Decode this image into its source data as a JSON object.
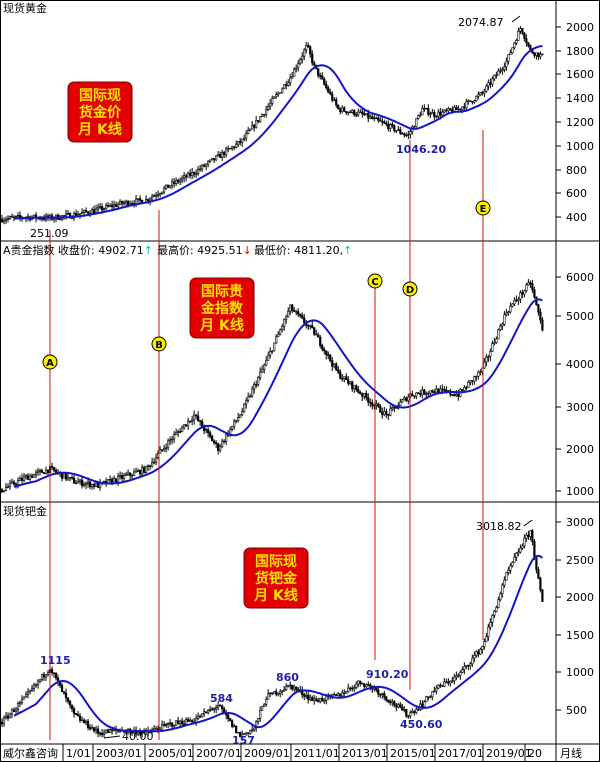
{
  "colors": {
    "bg": "#ffffff",
    "candle": "#000000",
    "ma": "#1414c8",
    "vline": "#c81414",
    "axis": "#000000",
    "badge": "#e30000",
    "badge_text": "#ffe000",
    "marker": "#fff200",
    "annotation": "#1f1fa8",
    "arrow_up": "#00c0c0",
    "arrow_down": "#ff0000"
  },
  "panels": [
    {
      "id": "gold",
      "header": "现货黄金",
      "badge": [
        "国际现",
        "货金价",
        "月 K线"
      ],
      "axis_ticks": [
        "2000",
        "1800",
        "1600",
        "1400",
        "1200",
        "1000",
        "800",
        "600",
        "400"
      ]
    },
    {
      "id": "index",
      "header_parts": [
        "A贵金指数 ",
        "收盘价: ",
        "4902.71",
        "",
        "最高价: ",
        "4925.51",
        "",
        "最低价: ",
        "4811.20",
        ","
      ],
      "badge": [
        "国际贵",
        "金指数",
        "月 K线"
      ],
      "axis_ticks": [
        "6000",
        "5000",
        "4000",
        "3000",
        "2000",
        "1000"
      ]
    },
    {
      "id": "palladium",
      "header": "现货钯金",
      "badge": [
        "国际现",
        "货钯金",
        "月 K线"
      ],
      "axis_ticks": [
        "3000",
        "2500",
        "2000",
        "1500",
        "1000",
        "500"
      ]
    }
  ],
  "markers": [
    "A",
    "B",
    "C",
    "D",
    "E"
  ],
  "annotations": {
    "gold": [
      "251.09",
      "2074.87",
      "1046.20"
    ],
    "palladium": [
      "1115",
      "40.00",
      "584",
      "157",
      "860",
      "910.20",
      "450.60",
      "3018.82"
    ]
  },
  "footer": {
    "left": "威尔鑫咨询",
    "dates": [
      "1/01",
      "2003/01",
      "2005/01",
      "2007/01",
      "2009/01",
      "2011/01",
      "2013/01",
      "2015/01",
      "2017/01",
      "2019/01",
      "20"
    ],
    "right": "月线"
  },
  "chart_data": [
    {
      "type": "line",
      "title": "现货黄金",
      "ylim": [
        100,
        2200
      ],
      "ma_color": "#1414c8",
      "x": [
        1999,
        2000,
        2001,
        2002,
        2003,
        2004,
        2005,
        2006,
        2007,
        2008,
        2009,
        2010,
        2011,
        2011.7,
        2012,
        2013,
        2014,
        2015,
        2015.9,
        2016.5,
        2017,
        2018,
        2019,
        2020,
        2020.6,
        2021,
        2021.5
      ],
      "values": [
        260,
        280,
        270,
        300,
        350,
        410,
        440,
        580,
        700,
        850,
        1000,
        1300,
        1600,
        1900,
        1700,
        1300,
        1250,
        1150,
        1046,
        1300,
        1250,
        1300,
        1450,
        1750,
        2075,
        1850,
        1800
      ]
    },
    {
      "type": "line",
      "title": "A贵金指数",
      "ylim": [
        800,
        6600
      ],
      "ma_color": "#1414c8",
      "x": [
        1999,
        2000,
        2001,
        2002,
        2003,
        2004,
        2005,
        2006,
        2007,
        2008,
        2009,
        2010,
        2011,
        2012,
        2013,
        2014,
        2015,
        2016,
        2017,
        2018,
        2019,
        2020,
        2021,
        2021.5
      ],
      "values": [
        1000,
        1300,
        1500,
        1200,
        1100,
        1300,
        1500,
        2200,
        2800,
        2000,
        2900,
        4100,
        5400,
        4800,
        3800,
        3300,
        2800,
        3300,
        3400,
        3300,
        3900,
        5300,
        6000,
        4900
      ]
    },
    {
      "type": "line",
      "title": "现货钯金",
      "ylim": [
        100,
        3200
      ],
      "ma_color": "#1414c8",
      "x": [
        1999,
        2000,
        2001,
        2002,
        2003,
        2004,
        2005,
        2006,
        2007,
        2008,
        2008.9,
        2009.5,
        2010,
        2011,
        2012,
        2013,
        2013.9,
        2014.5,
        2015.9,
        2016.5,
        2017,
        2018,
        2019,
        2020,
        2020.6,
        2021,
        2021.5
      ],
      "values": [
        350,
        700,
        1115,
        450,
        200,
        240,
        200,
        320,
        380,
        584,
        157,
        260,
        700,
        860,
        650,
        720,
        910,
        820,
        451,
        600,
        800,
        1000,
        1400,
        2400,
        2800,
        3019,
        2000
      ]
    }
  ]
}
